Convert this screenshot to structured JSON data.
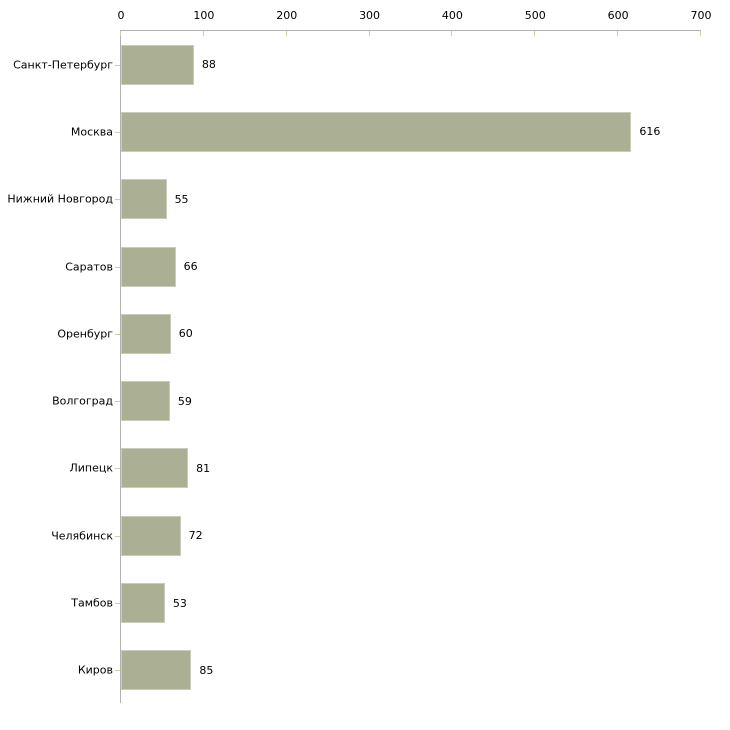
{
  "chart_data": {
    "type": "bar",
    "orientation": "horizontal",
    "title": "",
    "xlabel": "",
    "ylabel": "",
    "categories": [
      "Санкт-Петербург",
      "Москва",
      "Нижний Новгород",
      "Саратов",
      "Оренбург",
      "Волгоград",
      "Липецк",
      "Челябинск",
      "Тамбов",
      "Киров"
    ],
    "values": [
      88,
      616,
      55,
      66,
      60,
      59,
      81,
      72,
      53,
      85
    ],
    "value_labels": [
      "88",
      "616",
      "55",
      "66",
      "60",
      "59",
      "81",
      "72",
      "53",
      "85"
    ],
    "x_ticks": [
      0,
      100,
      200,
      300,
      400,
      500,
      600,
      700
    ],
    "xlim": [
      0,
      700
    ],
    "grid": false,
    "legend": null,
    "axis_position": "top",
    "colors": {
      "bar_fill": "#abb095",
      "bar_border": "#c9ccbc",
      "axis_line": "#b2b2b2",
      "tick_mark": "#ccd0a6",
      "text": "#000000",
      "background": "#ffffff"
    }
  }
}
